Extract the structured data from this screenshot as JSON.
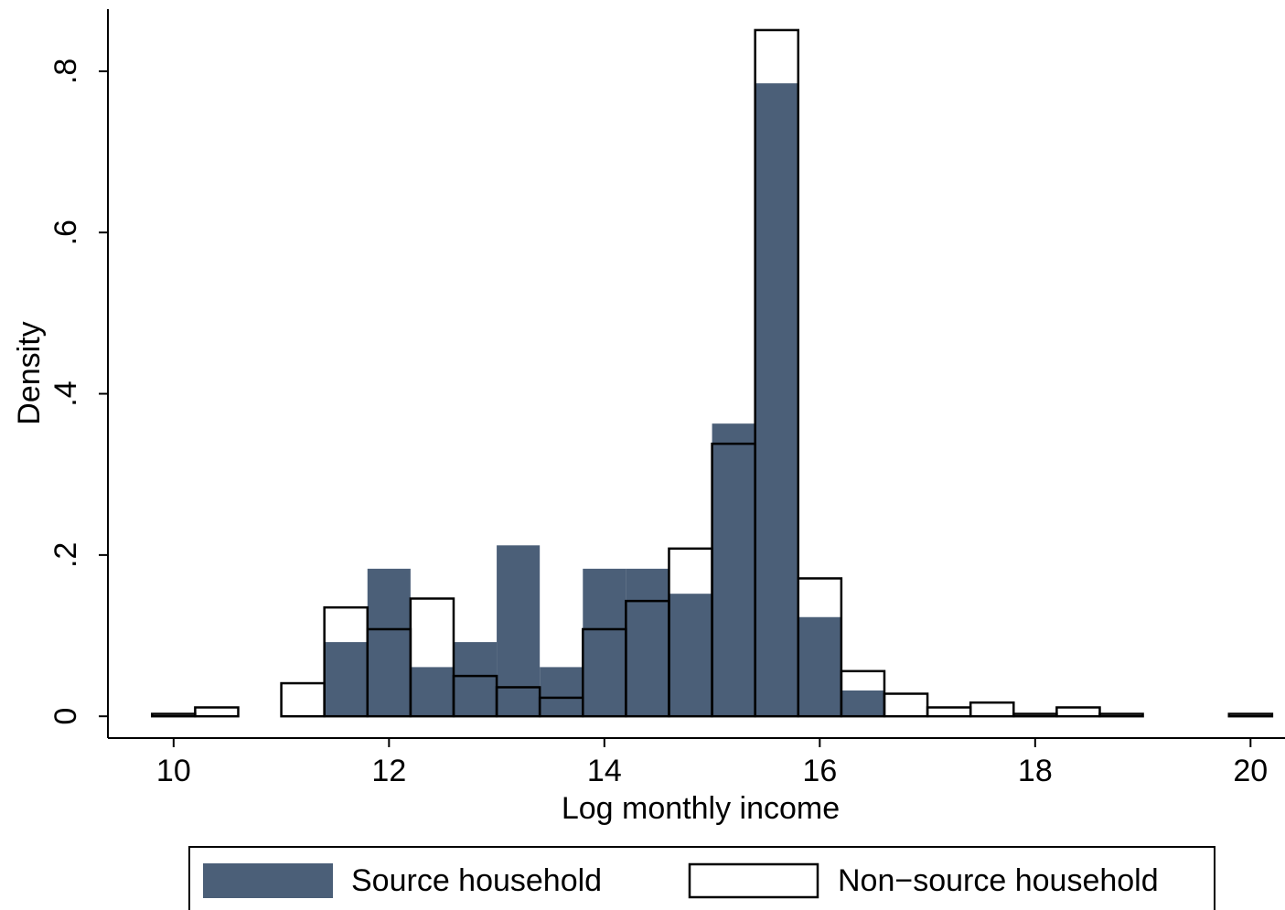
{
  "chart_data": {
    "type": "histogram",
    "xlabel": "Log monthly income",
    "ylabel": "Density",
    "bins": [
      9.8,
      10.2,
      10.6,
      11.0,
      11.4,
      11.8,
      12.2,
      12.6,
      13.0,
      13.4,
      13.8,
      14.2,
      14.6,
      15.0,
      15.4,
      15.8,
      16.2,
      16.6,
      17.0,
      17.4,
      17.8,
      18.2,
      18.6,
      19.0,
      19.4,
      19.8,
      20.2
    ],
    "series": [
      {
        "name": "Source household",
        "color": "#4b5f78",
        "values": [
          0,
          0,
          0,
          0,
          0.092,
          0.183,
          0.061,
          0.092,
          0.212,
          0.061,
          0.183,
          0.183,
          0.152,
          0.363,
          0.785,
          0.123,
          0.032,
          0,
          0,
          0,
          0,
          0,
          0,
          0,
          0,
          0
        ]
      },
      {
        "name": "Non−source household",
        "color": "#000000",
        "values": [
          0.003,
          0.011,
          0,
          0.041,
          0.135,
          0.108,
          0.146,
          0.05,
          0.036,
          0.023,
          0.108,
          0.143,
          0.208,
          0.338,
          0.851,
          0.171,
          0.056,
          0.028,
          0.011,
          0.017,
          0.003,
          0.011,
          0.003,
          0,
          0,
          0.003
        ]
      }
    ],
    "xlim": [
      9.39,
      20.32
    ],
    "xticks": [
      10,
      12,
      14,
      16,
      18,
      20
    ],
    "ylim": [
      -0.027,
      0.877
    ],
    "yticks": [
      0,
      {
        "value": 0.2,
        "label": ".2"
      },
      {
        "value": 0.4,
        "label": ".4"
      },
      {
        "value": 0.6,
        "label": ".6"
      },
      {
        "value": 0.8,
        "label": ".8"
      }
    ]
  }
}
